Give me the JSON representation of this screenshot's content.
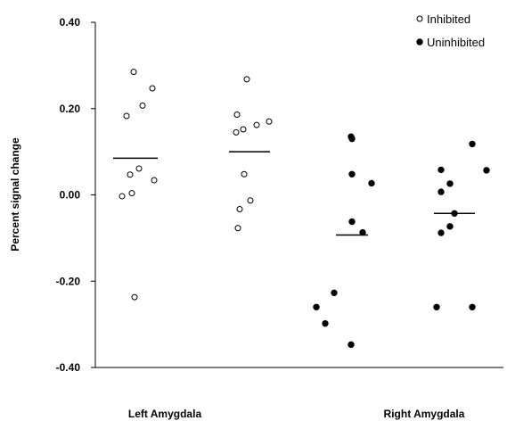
{
  "chart_data": {
    "type": "scatter",
    "title": "",
    "xlabel": "",
    "ylabel": "Percent signal change",
    "ylim": [
      -0.4,
      0.4
    ],
    "yticks": [
      {
        "value": 0.4,
        "label": "0.40"
      },
      {
        "value": 0.2,
        "label": "0.20"
      },
      {
        "value": 0.0,
        "label": "0.00"
      },
      {
        "value": -0.2,
        "label": "-0.20"
      },
      {
        "value": -0.4,
        "label": "-0.40"
      }
    ],
    "categories": [
      "Left Amygdala",
      "Right Amygdala"
    ],
    "grid": false,
    "legend_position": "top-right",
    "series": [
      {
        "name": "Inhibited",
        "marker": "open-circle",
        "color": "#000000",
        "groups": [
          {
            "category": "Left Amygdala",
            "mean": 0.085,
            "values": [
              0.285,
              0.247,
              0.207,
              0.183,
              0.061,
              0.047,
              0.034,
              0.004,
              -0.003,
              -0.237
            ]
          },
          {
            "category": "Right Amygdala",
            "mean": 0.1,
            "values": [
              0.268,
              0.186,
              0.17,
              0.162,
              0.152,
              0.145,
              0.048,
              -0.013,
              -0.033,
              -0.077
            ]
          }
        ]
      },
      {
        "name": "Uninhibited",
        "marker": "filled-circle",
        "color": "#000000",
        "groups": [
          {
            "category": "Left Amygdala",
            "mean": -0.093,
            "values": [
              0.135,
              0.13,
              0.048,
              0.027,
              -0.062,
              -0.087,
              -0.227,
              -0.26,
              -0.298,
              -0.347
            ]
          },
          {
            "category": "Right Amygdala",
            "mean": -0.043,
            "values": [
              0.118,
              0.058,
              0.057,
              0.026,
              0.007,
              -0.043,
              -0.073,
              -0.088,
              -0.26,
              -0.26
            ]
          }
        ]
      }
    ]
  }
}
